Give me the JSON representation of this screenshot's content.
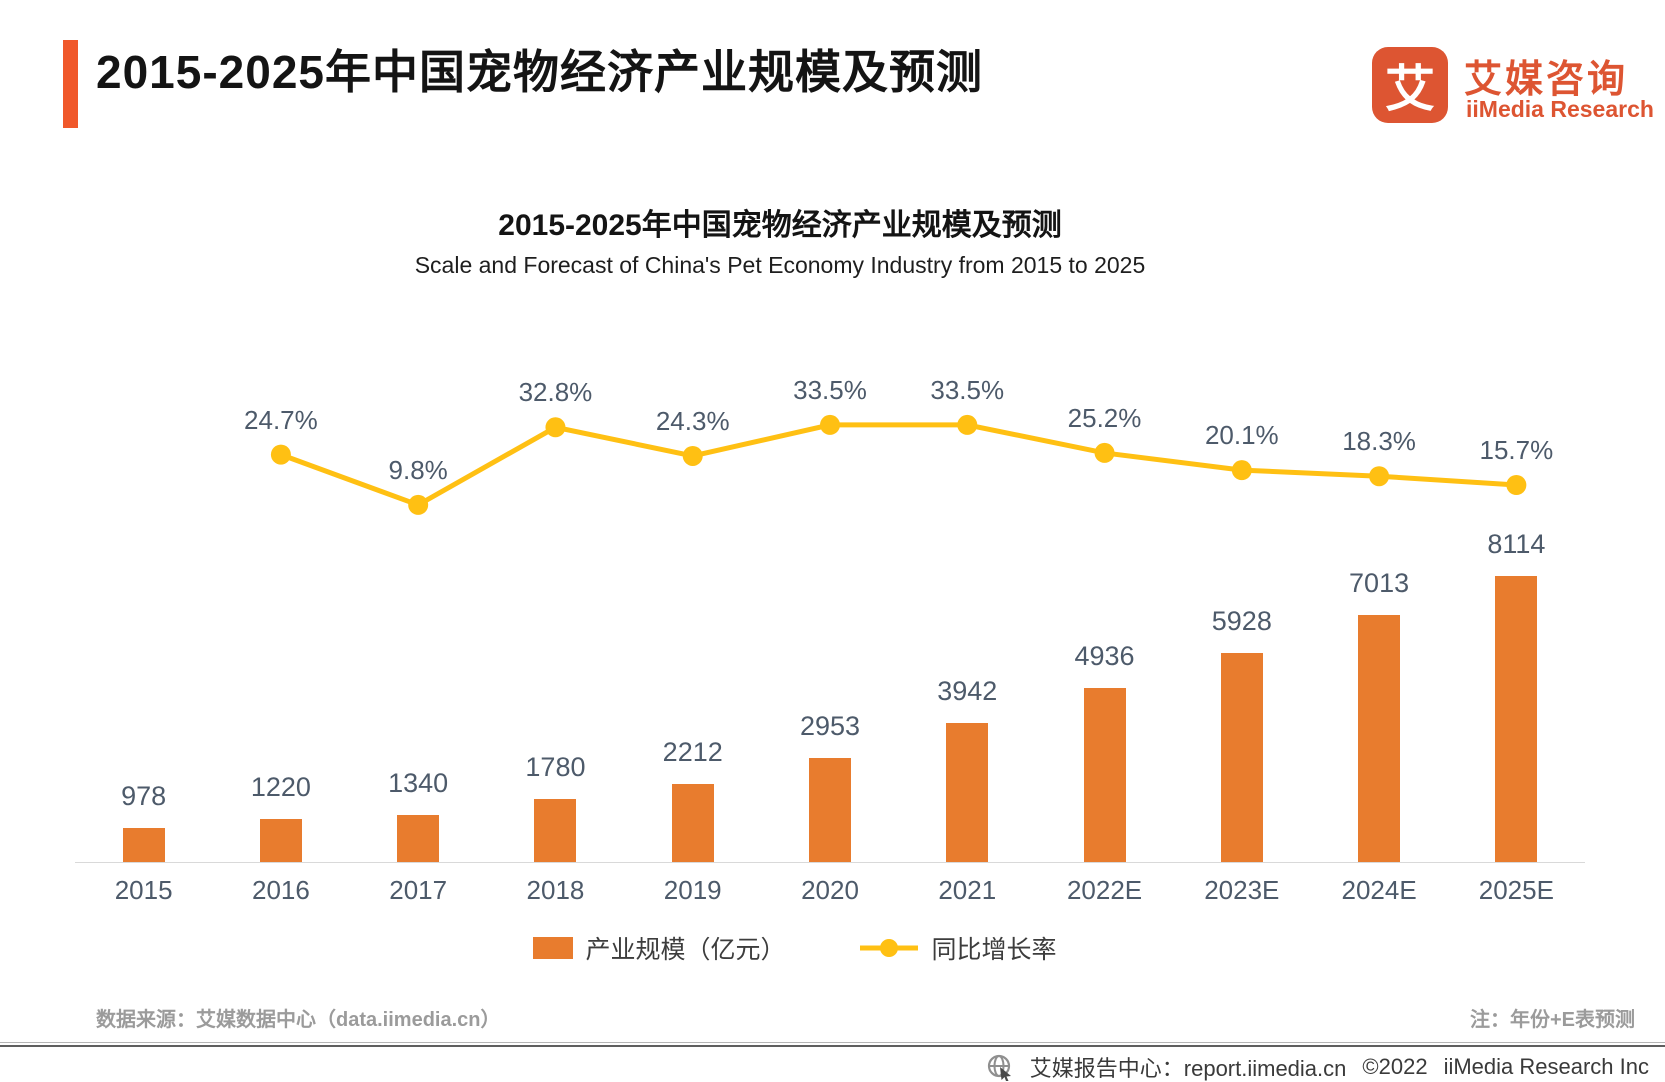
{
  "header": {
    "title": "2015-2025年中国宠物经济产业规模及预测",
    "logo": {
      "mark": "艾",
      "name_cn": "艾媒咨询",
      "name_en": "iiMedia Research"
    }
  },
  "chart": {
    "title_cn": "2015-2025年中国宠物经济产业规模及预测",
    "title_en": "Scale and Forecast of China's Pet Economy Industry from 2015 to 2025",
    "legend_bar": "产业规模（亿元）",
    "legend_line": "同比增长率"
  },
  "chart_data": {
    "type": "bar",
    "subtype": "combo-bar-line",
    "title": "2015-2025年中国宠物经济产业规模及预测",
    "subtitle": "Scale and Forecast of China's Pet Economy Industry from 2015 to 2025",
    "categories": [
      "2015",
      "2016",
      "2017",
      "2018",
      "2019",
      "2020",
      "2021",
      "2022E",
      "2023E",
      "2024E",
      "2025E"
    ],
    "series": [
      {
        "name": "产业规模（亿元）",
        "type": "bar",
        "unit": "亿元",
        "color": "#E87C2E",
        "values": [
          978,
          1220,
          1340,
          1780,
          2212,
          2953,
          3942,
          4936,
          5928,
          7013,
          8114
        ]
      },
      {
        "name": "同比增长率",
        "type": "line",
        "unit": "%",
        "color": "#FFC013",
        "values": [
          null,
          24.7,
          9.8,
          32.8,
          24.3,
          33.5,
          33.5,
          25.2,
          20.1,
          18.3,
          15.7
        ]
      }
    ],
    "legend_position": "bottom",
    "grid": false,
    "data_labels": true
  },
  "footer": {
    "source": "数据来源：艾媒数据中心（data.iimedia.cn）",
    "note": "注：年份+E表预测",
    "report_center": "艾媒报告中心：report.iimedia.cn",
    "copyright": "©2022",
    "company": "iiMedia Research Inc"
  },
  "colors": {
    "accent": "#F0582A",
    "logo": "#DD5532",
    "bar": "#E87C2E",
    "line": "#FFC013",
    "label_text": "#4D5A6A"
  }
}
